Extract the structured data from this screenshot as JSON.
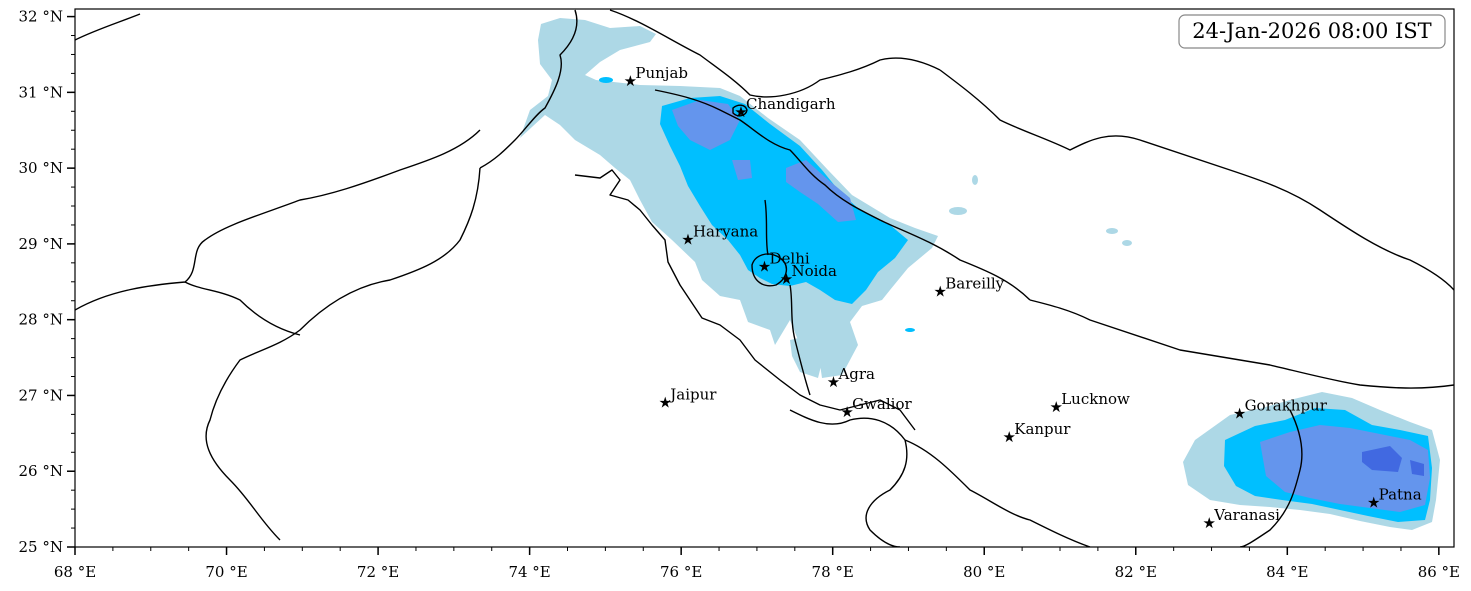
{
  "timestamp": "24-Jan-2026 08:00 IST",
  "axes": {
    "lon_range": [
      68,
      86.2
    ],
    "lat_range": [
      25,
      32.1
    ],
    "x_ticks": [
      {
        "value": 68,
        "label": "68 °E"
      },
      {
        "value": 70,
        "label": "70 °E"
      },
      {
        "value": 72,
        "label": "72 °E"
      },
      {
        "value": 74,
        "label": "74 °E"
      },
      {
        "value": 76,
        "label": "76 °E"
      },
      {
        "value": 78,
        "label": "78 °E"
      },
      {
        "value": 80,
        "label": "80 °E"
      },
      {
        "value": 82,
        "label": "82 °E"
      },
      {
        "value": 84,
        "label": "84 °E"
      },
      {
        "value": 86,
        "label": "86 °E"
      }
    ],
    "y_ticks": [
      {
        "value": 25,
        "label": "25 °N"
      },
      {
        "value": 26,
        "label": "26 °N"
      },
      {
        "value": 27,
        "label": "27 °N"
      },
      {
        "value": 28,
        "label": "28 °N"
      },
      {
        "value": 29,
        "label": "29 °N"
      },
      {
        "value": 30,
        "label": "30 °N"
      },
      {
        "value": 31,
        "label": "31 °N"
      },
      {
        "value": 32,
        "label": "32 °N"
      }
    ]
  },
  "cities": [
    {
      "name": "Punjab",
      "lon": 75.33,
      "lat": 31.15
    },
    {
      "name": "Chandigarh",
      "lon": 76.79,
      "lat": 30.74
    },
    {
      "name": "Haryana",
      "lon": 76.09,
      "lat": 29.06
    },
    {
      "name": "Delhi",
      "lon": 77.1,
      "lat": 28.7
    },
    {
      "name": "Noida",
      "lon": 77.39,
      "lat": 28.54
    },
    {
      "name": "Bareilly",
      "lon": 79.42,
      "lat": 28.37
    },
    {
      "name": "Agra",
      "lon": 78.01,
      "lat": 27.18
    },
    {
      "name": "Jaipur",
      "lon": 75.79,
      "lat": 26.91
    },
    {
      "name": "Gwalior",
      "lon": 78.19,
      "lat": 26.78
    },
    {
      "name": "Lucknow",
      "lon": 80.95,
      "lat": 26.85
    },
    {
      "name": "Kanpur",
      "lon": 80.33,
      "lat": 26.45
    },
    {
      "name": "Gorakhpur",
      "lon": 83.37,
      "lat": 26.76
    },
    {
      "name": "Varanasi",
      "lon": 82.97,
      "lat": 25.32
    },
    {
      "name": "Patna",
      "lon": 85.14,
      "lat": 25.59
    }
  ],
  "colors": {
    "level_light": "#add8e6",
    "level_medium": "#00bfff",
    "level_heavy": "#6495ed",
    "level_intense": "#4169e1",
    "border": "#000000"
  }
}
